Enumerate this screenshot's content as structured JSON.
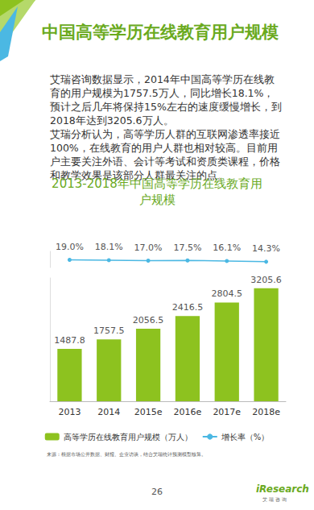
{
  "page": {
    "title": "中国高等学历在线教育用户规模",
    "paragraphs": [
      "艾瑞咨询数据显示，2014年中国高等学历在线教育的用户规模为1757.5万人，同比增长18.1%，预计之后几年将保持15%左右的速度缓慢增长，到2018年达到3205.6万人。",
      "艾瑞分析认为，高等学历人群的互联网渗透率接近100%，在线教育的用户人群也相对较高。目前用户主要关注外语、会计等考试和资质类课程，价格和教学效果是该部分人群最关注的点。"
    ],
    "source": "来源：根据市场公开数据、财报、企业访谈，结合艾瑞统计预测模型核算。",
    "page_number": "26",
    "logo": [
      "iResearch",
      "艾瑞咨询"
    ]
  },
  "chart_data": {
    "type": "bar",
    "title": "2013-2018年中国高等学历在线教育用户规模",
    "categories": [
      "2013",
      "2014",
      "2015e",
      "2016e",
      "2017e",
      "2018e"
    ],
    "series": [
      {
        "name": "高等学历在线教育用户规模（万人）",
        "type": "bar",
        "color": "#8dc21f",
        "values": [
          1487.8,
          1757.5,
          2056.5,
          2416.5,
          2804.5,
          3205.6
        ]
      },
      {
        "name": "增长率（%）",
        "type": "line",
        "axis": "y2",
        "color": "#4bb8e3",
        "marker": "circle",
        "values": [
          19.0,
          18.1,
          17.0,
          17.5,
          16.1,
          14.3
        ],
        "value_labels": [
          "19.0%",
          "18.1%",
          "17.0%",
          "17.5%",
          "16.1%",
          "14.3%"
        ]
      }
    ],
    "ylim": [
      0,
      3500
    ],
    "y2lim": [
      0,
      40
    ],
    "grid": false,
    "legend": "bottom",
    "data_labels": true,
    "tick_labels": "x"
  }
}
